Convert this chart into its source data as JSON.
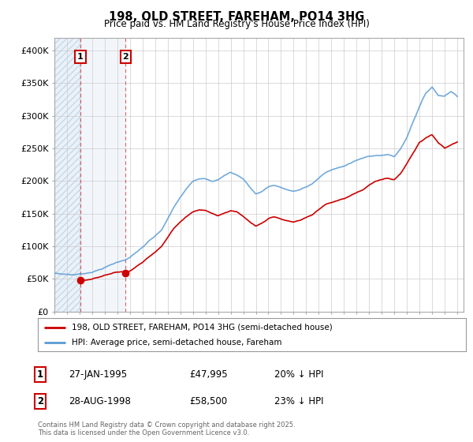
{
  "title": "198, OLD STREET, FAREHAM, PO14 3HG",
  "subtitle": "Price paid vs. HM Land Registry's House Price Index (HPI)",
  "ylabel_values": [
    "£0",
    "£50K",
    "£100K",
    "£150K",
    "£200K",
    "£250K",
    "£300K",
    "£350K",
    "£400K"
  ],
  "ylim": [
    0,
    420000
  ],
  "yticks": [
    0,
    50000,
    100000,
    150000,
    200000,
    250000,
    300000,
    350000,
    400000
  ],
  "legend_line1": "198, OLD STREET, FAREHAM, PO14 3HG (semi-detached house)",
  "legend_line2": "HPI: Average price, semi-detached house, Fareham",
  "annotation1_label": "1",
  "annotation1_date": "27-JAN-1995",
  "annotation1_price": "£47,995",
  "annotation1_hpi": "20% ↓ HPI",
  "annotation2_label": "2",
  "annotation2_date": "28-AUG-1998",
  "annotation2_price": "£58,500",
  "annotation2_hpi": "23% ↓ HPI",
  "footer": "Contains HM Land Registry data © Crown copyright and database right 2025.\nThis data is licensed under the Open Government Licence v3.0.",
  "red_color": "#cc0000",
  "blue_color": "#5b9bd5",
  "hatch_color": "#c8d8e8",
  "light_blue_fill": "#dce8f5",
  "background_color": "#ffffff",
  "grid_color": "#cccccc",
  "purchase1_x": 1995.07,
  "purchase1_y": 47995,
  "purchase2_x": 1998.65,
  "purchase2_y": 58500,
  "xlim_start": 1993.0,
  "xlim_end": 2025.5
}
